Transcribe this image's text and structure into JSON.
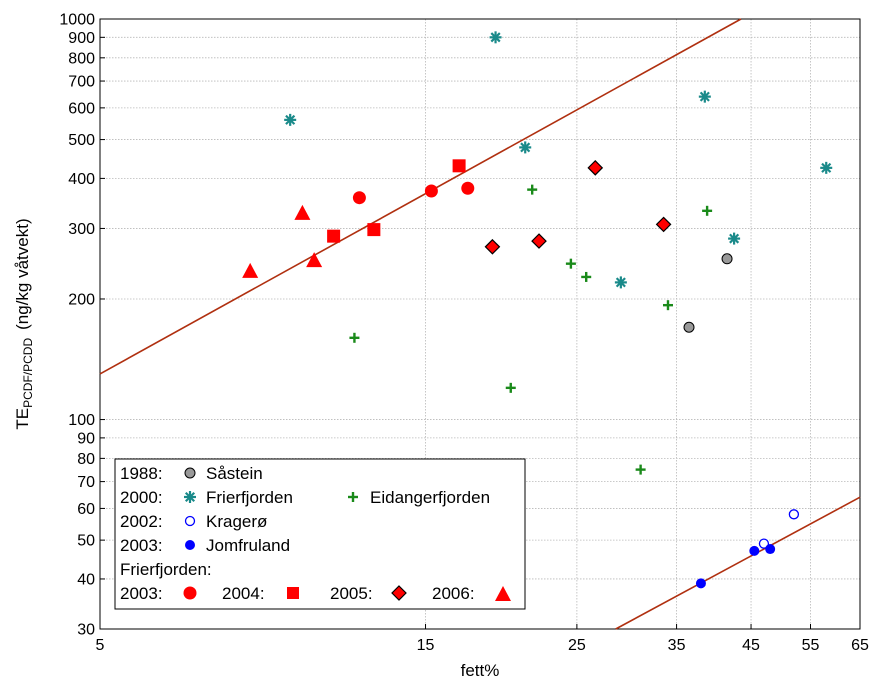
{
  "chart_data": {
    "type": "scatter",
    "x_scale": "log",
    "y_scale": "log",
    "xlabel": "fett%",
    "ylabel_main": "TE",
    "ylabel_sub": "PCDF/PCDD",
    "ylabel_unit": "(ng/kg våtvekt)",
    "xlim": [
      5,
      65
    ],
    "ylim": [
      30,
      1000
    ],
    "x_ticks": [
      5,
      15,
      25,
      35,
      45,
      55,
      65
    ],
    "y_ticks": [
      30,
      40,
      50,
      60,
      70,
      80,
      90,
      100,
      200,
      300,
      400,
      500,
      600,
      700,
      800,
      900,
      1000
    ],
    "grid": true,
    "series": [
      {
        "key": "saastein",
        "marker": "circle",
        "color": "#999999",
        "stroke": "#000000",
        "points": [
          [
            36.5,
            170
          ],
          [
            41.5,
            252
          ]
        ]
      },
      {
        "key": "frierfjorden2000",
        "marker": "asterisk",
        "color": "#1a8a8a",
        "points": [
          [
            9.5,
            560
          ],
          [
            19,
            900
          ],
          [
            21,
            478
          ],
          [
            29,
            220
          ],
          [
            38.5,
            640
          ],
          [
            42.5,
            283
          ],
          [
            58,
            425
          ]
        ]
      },
      {
        "key": "eidangerfjorden",
        "marker": "plus",
        "color": "#1a8a1a",
        "points": [
          [
            11.8,
            160
          ],
          [
            20,
            120
          ],
          [
            21.5,
            375
          ],
          [
            24.5,
            245
          ],
          [
            25.8,
            227
          ],
          [
            31,
            75
          ],
          [
            34,
            193
          ],
          [
            38.8,
            332
          ]
        ]
      },
      {
        "key": "kragero",
        "marker": "open-circle",
        "color": "#0000ff",
        "points": [
          [
            47,
            49
          ],
          [
            52,
            58
          ]
        ]
      },
      {
        "key": "jomfruland",
        "marker": "filled-circle",
        "color": "#0000ff",
        "points": [
          [
            38,
            39
          ],
          [
            45.5,
            47
          ],
          [
            48,
            47.5
          ]
        ]
      },
      {
        "key": "f2003",
        "marker": "circle",
        "color": "#ff0000",
        "points": [
          [
            12,
            358
          ],
          [
            15.3,
            372
          ],
          [
            17.3,
            378
          ]
        ]
      },
      {
        "key": "f2004",
        "marker": "square",
        "color": "#ff0000",
        "points": [
          [
            11,
            287
          ],
          [
            12.6,
            298
          ],
          [
            16.8,
            430
          ]
        ]
      },
      {
        "key": "f2005",
        "marker": "diamond",
        "color": "#ff0000",
        "stroke": "#000000",
        "points": [
          [
            18.8,
            270
          ],
          [
            22,
            279
          ],
          [
            26.6,
            425
          ],
          [
            33.5,
            307
          ]
        ]
      },
      {
        "key": "f2006",
        "marker": "triangle",
        "color": "#ff0000",
        "points": [
          [
            8.3,
            235
          ],
          [
            9.9,
            328
          ],
          [
            10.3,
            250
          ]
        ]
      }
    ],
    "trend_lines": [
      {
        "color": "#b03010",
        "from": [
          5,
          130
        ],
        "to": [
          43.5,
          1000
        ]
      },
      {
        "color": "#b03010",
        "from": [
          28.5,
          30
        ],
        "to": [
          65,
          64
        ]
      }
    ],
    "legend": {
      "placement": "bottom-left",
      "row1": {
        "prefix": "1988:",
        "name": "Såstein"
      },
      "row2": {
        "prefix": "2000:",
        "name": "Frierfjorden",
        "name2": "Eidangerfjorden"
      },
      "row3": {
        "prefix": "2002:",
        "name": "Kragerø"
      },
      "row4": {
        "prefix": "2003:",
        "name": "Jomfruland"
      },
      "row5": {
        "heading": "Frierfjorden:"
      },
      "row6": {
        "l1": "2003:",
        "l2": "2004:",
        "l3": "2005:",
        "l4": "2006:"
      }
    }
  }
}
